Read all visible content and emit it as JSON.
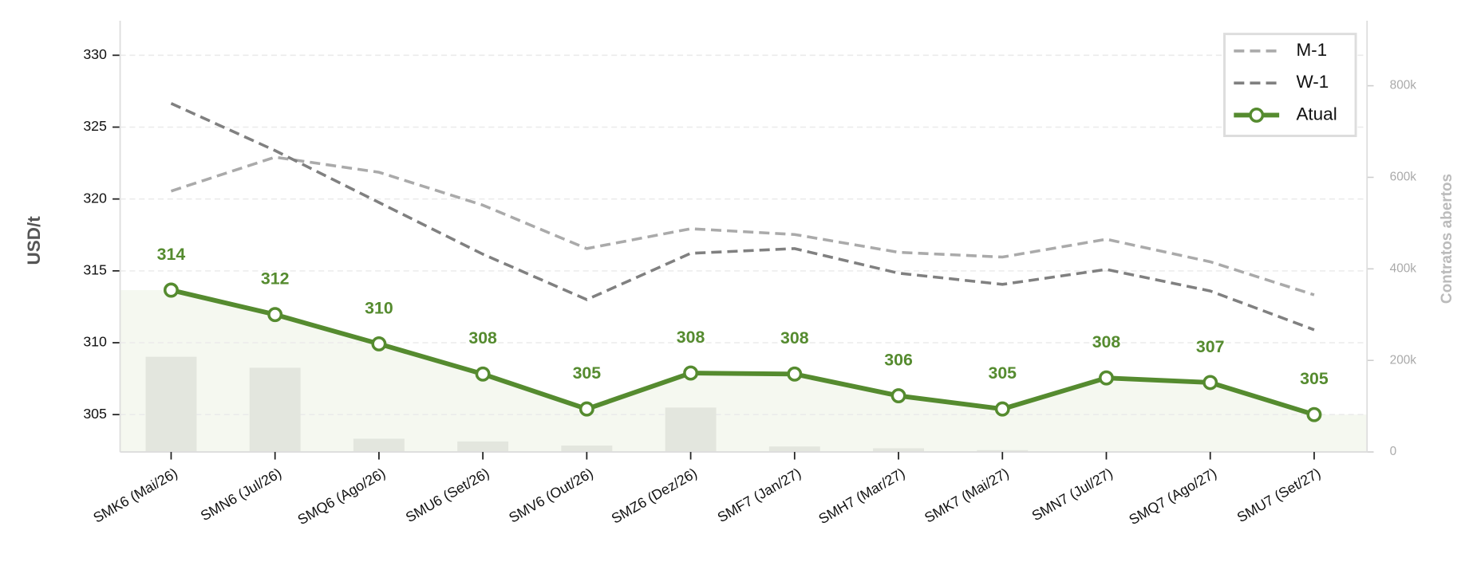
{
  "chart_data": {
    "type": "line",
    "ylabel": "USD/t",
    "y2label": "Contratos abertos",
    "categories": [
      "SMK6 (Mai/26)",
      "SMN6 (Jul/26)",
      "SMQ6 (Ago/26)",
      "SMU6 (Set/26)",
      "SMV6 (Out/26)",
      "SMZ6 (Dez/26)",
      "SMF7 (Jan/27)",
      "SMH7 (Mar/27)",
      "SMK7 (Mai/27)",
      "SMN7 (Jul/27)",
      "SMQ7 (Ago/27)",
      "SMU7 (Set/27)"
    ],
    "series": [
      {
        "type": "bar",
        "axis": "y2",
        "color": "#e3e6de",
        "values": [
          208000,
          184000,
          29000,
          23000,
          14000,
          97000,
          12000,
          8000,
          4000,
          0,
          0,
          0
        ]
      },
      {
        "name": "M-1",
        "color": "#aaaaaa",
        "dashed": true,
        "values": [
          320.55,
          322.91,
          321.86,
          319.57,
          316.55,
          317.93,
          317.53,
          316.29,
          315.96,
          317.2,
          315.63,
          313.33
        ]
      },
      {
        "name": "W-1",
        "color": "#808080",
        "dashed": true,
        "values": [
          326.65,
          323.37,
          319.76,
          316.16,
          313.0,
          316.22,
          316.55,
          314.84,
          314.06,
          315.1,
          313.6,
          310.9
        ]
      },
      {
        "name": "Atual",
        "color": "#558b2f",
        "markers": true,
        "fill": "#f5f8f0",
        "values": [
          313.66,
          311.96,
          309.92,
          307.82,
          305.39,
          307.89,
          307.82,
          306.31,
          305.39,
          307.55,
          307.23,
          305.0
        ],
        "value_labels": [
          "314",
          "312",
          "310",
          "308",
          "305",
          "308",
          "308",
          "306",
          "305",
          "308",
          "307",
          "305"
        ]
      }
    ],
    "ylim": [
      302.4,
      332.4
    ],
    "yticks": [
      305,
      310,
      315,
      320,
      325,
      330
    ],
    "y2lim": [
      0,
      942000
    ],
    "y2ticks": [
      0,
      {
        "value": 200000,
        "label": "200k"
      },
      {
        "value": 400000,
        "label": "400k"
      },
      {
        "value": 600000,
        "label": "600k"
      },
      {
        "value": 800000,
        "label": "800k"
      }
    ],
    "grid": true,
    "legend": "upper right"
  }
}
